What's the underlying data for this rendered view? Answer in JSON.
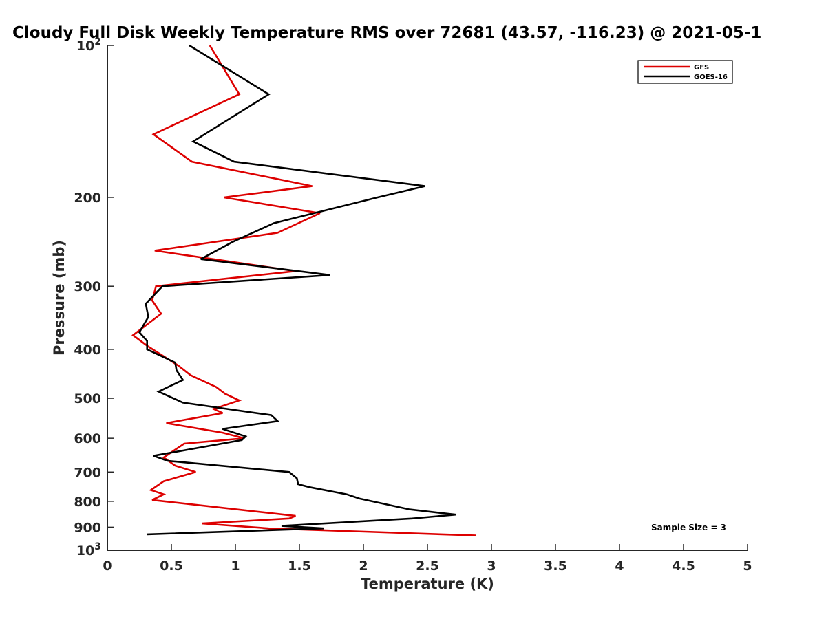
{
  "chart_data": {
    "type": "line",
    "title": "Cloudy Full Disk Weekly Temperature RMS over 72681 (43.57, -116.23) @ 2021-05-1",
    "xlabel": "Temperature (K)",
    "ylabel": "Pressure (mb)",
    "xlim": [
      0,
      5
    ],
    "ylim": [
      100,
      1000
    ],
    "y_scale": "log",
    "y_reversed": true,
    "x_ticks": [
      "0",
      "0.5",
      "1",
      "1.5",
      "2",
      "2.5",
      "3",
      "3.5",
      "4",
      "4.5",
      "5"
    ],
    "y_ticks": [
      {
        "value": 100,
        "base": "10",
        "exp": "2"
      },
      {
        "value": 200,
        "label": "200"
      },
      {
        "value": 300,
        "label": "300"
      },
      {
        "value": 400,
        "label": "400"
      },
      {
        "value": 500,
        "label": "500"
      },
      {
        "value": 600,
        "label": "600"
      },
      {
        "value": 700,
        "label": "700"
      },
      {
        "value": 800,
        "label": "800"
      },
      {
        "value": 900,
        "label": "900"
      },
      {
        "value": 1000,
        "base": "10",
        "exp": "3"
      }
    ],
    "grid": false,
    "legend": "top-right",
    "annotation": "Sample Size = 3",
    "series": [
      {
        "name": "GFS",
        "color": "#dd0000",
        "points": [
          [
            0.8,
            100
          ],
          [
            1.03,
            125
          ],
          [
            0.36,
            150
          ],
          [
            0.66,
            170
          ],
          [
            1.6,
            190
          ],
          [
            0.91,
            200
          ],
          [
            1.66,
            215
          ],
          [
            1.33,
            235
          ],
          [
            0.37,
            255
          ],
          [
            1.47,
            280
          ],
          [
            0.38,
            300
          ],
          [
            0.35,
            320
          ],
          [
            0.42,
            340
          ],
          [
            0.2,
            375
          ],
          [
            0.32,
            395
          ],
          [
            0.55,
            430
          ],
          [
            0.65,
            450
          ],
          [
            0.85,
            475
          ],
          [
            0.92,
            490
          ],
          [
            1.03,
            505
          ],
          [
            0.83,
            525
          ],
          [
            0.9,
            535
          ],
          [
            0.46,
            560
          ],
          [
            0.9,
            585
          ],
          [
            1.07,
            600
          ],
          [
            0.6,
            615
          ],
          [
            0.44,
            655
          ],
          [
            0.53,
            680
          ],
          [
            0.69,
            700
          ],
          [
            0.44,
            730
          ],
          [
            0.34,
            760
          ],
          [
            0.44,
            775
          ],
          [
            0.35,
            795
          ],
          [
            1.47,
            855
          ],
          [
            1.42,
            865
          ],
          [
            0.74,
            885
          ],
          [
            1.26,
            905
          ],
          [
            2.88,
            935
          ]
        ]
      },
      {
        "name": "GOES-16",
        "color": "#000000",
        "points": [
          [
            0.64,
            100
          ],
          [
            1.26,
            125
          ],
          [
            0.67,
            155
          ],
          [
            0.99,
            170
          ],
          [
            2.48,
            190
          ],
          [
            2.11,
            200
          ],
          [
            1.3,
            225
          ],
          [
            0.98,
            245
          ],
          [
            0.73,
            265
          ],
          [
            1.74,
            285
          ],
          [
            0.43,
            300
          ],
          [
            0.3,
            325
          ],
          [
            0.32,
            345
          ],
          [
            0.25,
            370
          ],
          [
            0.31,
            385
          ],
          [
            0.31,
            400
          ],
          [
            0.53,
            425
          ],
          [
            0.54,
            440
          ],
          [
            0.59,
            460
          ],
          [
            0.4,
            485
          ],
          [
            0.59,
            510
          ],
          [
            1.28,
            540
          ],
          [
            1.33,
            555
          ],
          [
            0.9,
            575
          ],
          [
            1.08,
            595
          ],
          [
            1.05,
            605
          ],
          [
            0.36,
            650
          ],
          [
            0.47,
            665
          ],
          [
            1.42,
            700
          ],
          [
            1.48,
            720
          ],
          [
            1.49,
            740
          ],
          [
            1.58,
            750
          ],
          [
            1.87,
            775
          ],
          [
            1.97,
            790
          ],
          [
            2.36,
            830
          ],
          [
            2.72,
            850
          ],
          [
            2.38,
            865
          ],
          [
            1.36,
            895
          ],
          [
            1.69,
            905
          ],
          [
            0.31,
            930
          ]
        ]
      }
    ]
  }
}
